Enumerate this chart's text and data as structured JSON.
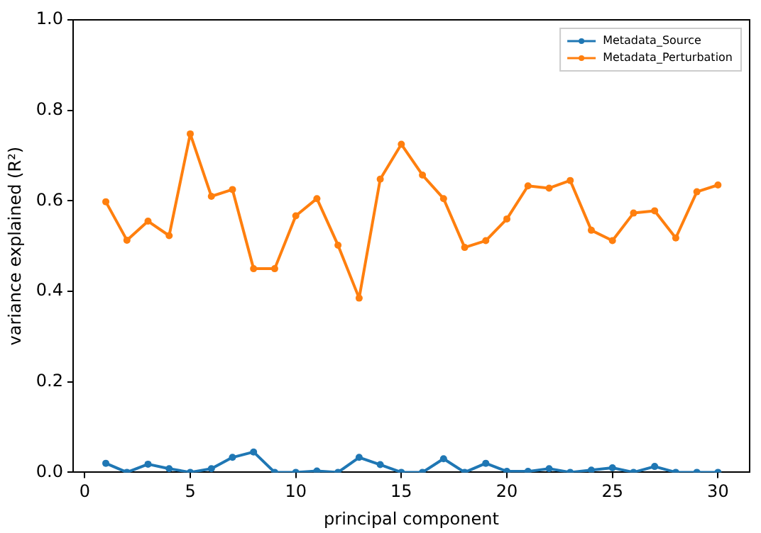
{
  "chart_data": {
    "type": "line",
    "xlabel": "principal component",
    "ylabel": "variance explained (R²)",
    "x": [
      1,
      2,
      3,
      4,
      5,
      6,
      7,
      8,
      9,
      10,
      11,
      12,
      13,
      14,
      15,
      16,
      17,
      18,
      19,
      20,
      21,
      22,
      23,
      24,
      25,
      26,
      27,
      28,
      29,
      30
    ],
    "series": [
      {
        "name": "Metadata_Source",
        "color": "#1f77b4",
        "values": [
          0.02,
          0,
          0.018,
          0.008,
          0,
          0.008,
          0.033,
          0.045,
          0,
          0,
          0.003,
          0,
          0.033,
          0.017,
          0,
          0,
          0.03,
          0,
          0.02,
          0.002,
          0.002,
          0.008,
          0,
          0.005,
          0.01,
          0,
          0.013,
          0,
          0,
          0
        ]
      },
      {
        "name": "Metadata_Perturbation",
        "color": "#ff7f0e",
        "values": [
          0.598,
          0.513,
          0.555,
          0.523,
          0.748,
          0.61,
          0.625,
          0.45,
          0.45,
          0.567,
          0.605,
          0.502,
          0.385,
          0.648,
          0.725,
          0.657,
          0.605,
          0.497,
          0.512,
          0.56,
          0.633,
          0.628,
          0.645,
          0.535,
          0.512,
          0.573,
          0.578,
          0.518,
          0.62,
          0.635
        ]
      }
    ],
    "xlim": [
      -0.55,
      31.5
    ],
    "xticks": [
      0,
      5,
      10,
      15,
      20,
      25,
      30
    ],
    "ylim": [
      0,
      1
    ],
    "yticks": [
      {
        "value": 0,
        "label": "0.0"
      },
      0.2,
      0.4,
      0.6,
      0.8,
      {
        "value": 1,
        "label": "1.0"
      }
    ],
    "grid": false,
    "legend": "top right",
    "marker": "circle",
    "line_style": "solid"
  }
}
